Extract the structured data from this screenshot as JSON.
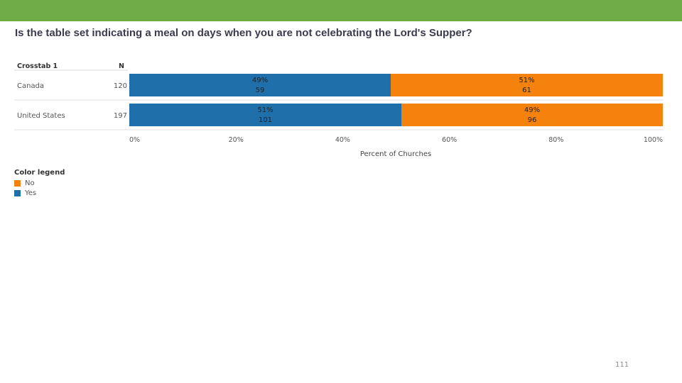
{
  "slide": {
    "title": "Is the table set indicating a meal on days when you are not celebrating the Lord's Supper?",
    "page_number": "111",
    "band_color": "#70ad47"
  },
  "chart_data": {
    "type": "bar",
    "orientation": "horizontal",
    "stacked": true,
    "normalized": true,
    "table_header": "Crosstab 1",
    "n_header": "N",
    "categories": [
      "Canada",
      "United States"
    ],
    "n_values": [
      "120",
      "197"
    ],
    "series": [
      {
        "name": "Yes",
        "color": "#1f6fab",
        "values": [
          49,
          51
        ],
        "counts": [
          59,
          101
        ],
        "labels": [
          "49%",
          "51%"
        ]
      },
      {
        "name": "No",
        "color": "#f5820d",
        "values": [
          51,
          49
        ],
        "counts": [
          61,
          96
        ],
        "labels": [
          "51%",
          "49%"
        ]
      }
    ],
    "xlabel": "Percent of Churches",
    "xlim": [
      0,
      100
    ],
    "xticks": [
      "0%",
      "20%",
      "40%",
      "60%",
      "80%",
      "100%"
    ],
    "grid": false
  },
  "legend": {
    "title": "Color legend",
    "items": [
      {
        "label": "No",
        "color": "#f5820d"
      },
      {
        "label": "Yes",
        "color": "#1f6fab"
      }
    ]
  }
}
